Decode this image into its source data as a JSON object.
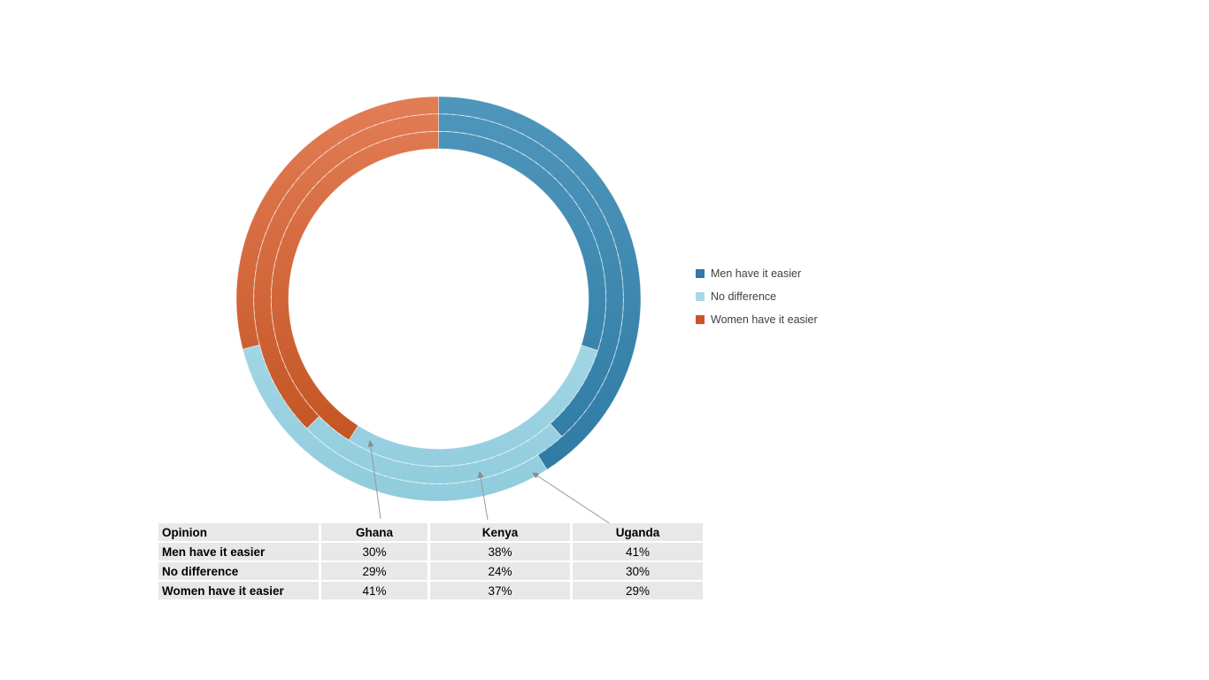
{
  "chart_data": {
    "type": "donut",
    "subtype": "concentric-multi-ring",
    "description": "Concentric doughnut chart; rings from inner to outer: Ghana, Kenya, Uganda; segments drawn clockwise starting at 12 o'clock",
    "categories": [
      "Men have it easier",
      "No difference",
      "Women have it easier"
    ],
    "series": [
      {
        "name": "Ghana",
        "ring": "inner",
        "values": [
          30,
          29,
          41
        ]
      },
      {
        "name": "Kenya",
        "ring": "middle",
        "values": [
          38,
          24,
          37
        ]
      },
      {
        "name": "Uganda",
        "ring": "outer",
        "values": [
          41,
          30,
          29
        ]
      }
    ],
    "unit": "%",
    "start_angle_deg": 0,
    "direction": "clockwise",
    "legend_position": "right",
    "category_colors": [
      {
        "name": "Men have it easier",
        "top": "#4F96BC",
        "bottom": "#2C79A2",
        "flat": "#3079A6"
      },
      {
        "name": "No difference",
        "top": "#BCE4F0",
        "bottom": "#90CCDD",
        "flat": "#A8D8E8"
      },
      {
        "name": "Women have it easier",
        "top": "#E27D55",
        "bottom": "#BF4E1B",
        "flat": "#CE5328"
      }
    ],
    "separator_color": "#FFFFFF",
    "arrow_color": "#9A9A9A"
  },
  "legend": {
    "items": [
      {
        "label": "Men have it easier"
      },
      {
        "label": "No difference"
      },
      {
        "label": "Women have it easier"
      }
    ]
  },
  "table": {
    "headers": [
      "Opinion",
      "Ghana",
      "Kenya",
      "Uganda"
    ],
    "rows": [
      {
        "label": "Men have it easier",
        "values": [
          "30%",
          "38%",
          "41%"
        ]
      },
      {
        "label": "No difference",
        "values": [
          "29%",
          "24%",
          "30%"
        ]
      },
      {
        "label": "Women have it easier",
        "values": [
          "41%",
          "37%",
          "29%"
        ]
      }
    ]
  }
}
